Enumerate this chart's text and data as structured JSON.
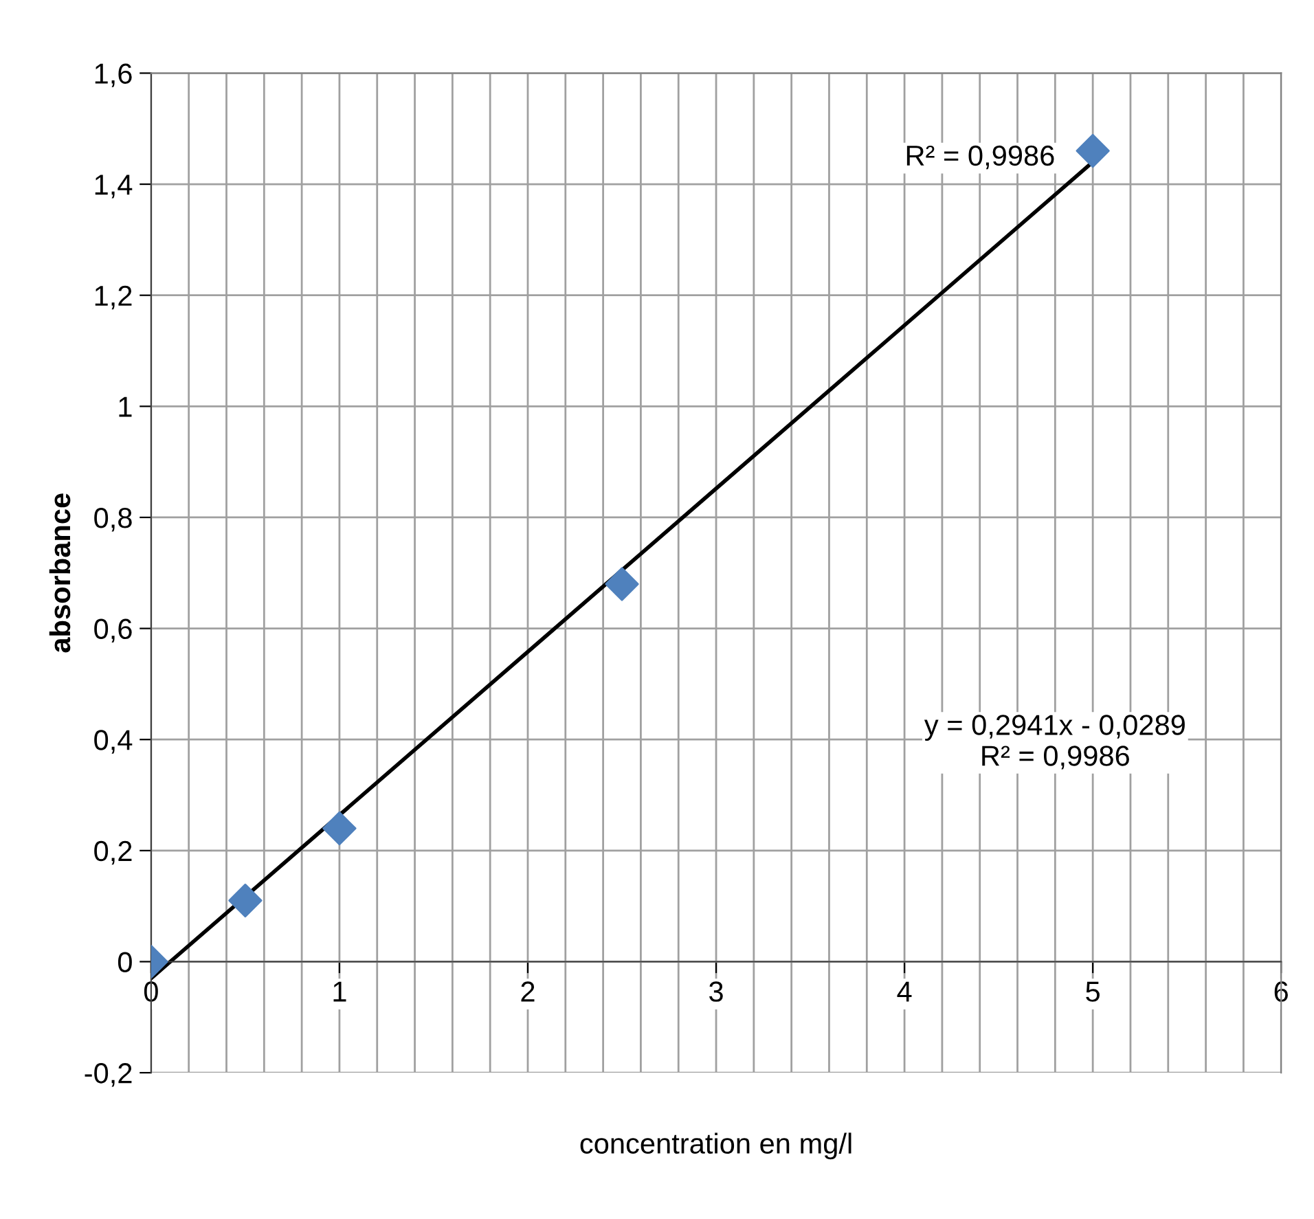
{
  "chart_data": {
    "type": "scatter",
    "xlabel": "concentration en mg/l",
    "ylabel": "absorbance",
    "series": [
      {
        "color": "#4f81bd",
        "marker": "diamond",
        "x": [
          0,
          0.5,
          1,
          2.5,
          5
        ],
        "values": [
          0,
          0.11,
          0.24,
          0.68,
          1.46
        ]
      },
      {
        "type": "line",
        "color": "#000000",
        "marker": "none",
        "line_style": "solid",
        "x": [
          0,
          5
        ],
        "values": [
          -0.03,
          1.44
        ]
      }
    ],
    "xlim": [
      0,
      6
    ],
    "xticks": [
      0,
      1,
      2,
      3,
      4,
      5,
      6
    ],
    "ylim": [
      -0.2,
      1.6
    ],
    "yticks": [
      {
        "value": -0.2,
        "label": "-0,2"
      },
      0,
      {
        "value": 0.2,
        "label": "0,2"
      },
      {
        "value": 0.4,
        "label": "0,4"
      },
      {
        "value": 0.6,
        "label": "0,6"
      },
      {
        "value": 0.8,
        "label": "0,8"
      },
      1,
      {
        "value": 1.2,
        "label": "1,2"
      },
      {
        "value": 1.4,
        "label": "1,4"
      },
      {
        "value": 1.6,
        "label": "1,6"
      }
    ],
    "grid": true,
    "legend": false,
    "annotations": [
      "R² = 0,9986",
      "y = 0,2941x - 0,0289\nR² = 0,9986"
    ]
  }
}
